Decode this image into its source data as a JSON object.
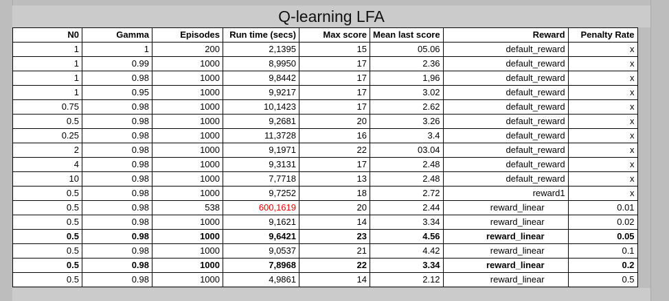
{
  "title": "Q-learning LFA",
  "colors": {
    "highlight": "#e00000"
  },
  "columns": [
    "N0",
    "Gamma",
    "Episodes",
    "Run time (secs)",
    "Max score",
    "Mean last score",
    "Reward",
    "Penalty Rate"
  ],
  "rows": [
    {
      "n0": "1",
      "gamma": "1",
      "episodes": "200",
      "runtime": "2,1395",
      "max": "15",
      "mean": "05.06",
      "reward": "default_reward",
      "penalty": "x",
      "bold": false,
      "red_runtime": false
    },
    {
      "n0": "1",
      "gamma": "0.99",
      "episodes": "1000",
      "runtime": "8,9950",
      "max": "17",
      "mean": "2.36",
      "reward": "default_reward",
      "penalty": "x",
      "bold": false,
      "red_runtime": false
    },
    {
      "n0": "1",
      "gamma": "0.98",
      "episodes": "1000",
      "runtime": "9,8442",
      "max": "17",
      "mean": "1,96",
      "reward": "default_reward",
      "penalty": "x",
      "bold": false,
      "red_runtime": false
    },
    {
      "n0": "1",
      "gamma": "0.95",
      "episodes": "1000",
      "runtime": "9,9217",
      "max": "17",
      "mean": "3.02",
      "reward": "default_reward",
      "penalty": "x",
      "bold": false,
      "red_runtime": false
    },
    {
      "n0": "0.75",
      "gamma": "0.98",
      "episodes": "1000",
      "runtime": "10,1423",
      "max": "17",
      "mean": "2.62",
      "reward": "default_reward",
      "penalty": "x",
      "bold": false,
      "red_runtime": false
    },
    {
      "n0": "0.5",
      "gamma": "0.98",
      "episodes": "1000",
      "runtime": "9,2681",
      "max": "20",
      "mean": "3.26",
      "reward": "default_reward",
      "penalty": "x",
      "bold": false,
      "red_runtime": false
    },
    {
      "n0": "0.25",
      "gamma": "0.98",
      "episodes": "1000",
      "runtime": "11,3728",
      "max": "16",
      "mean": "3.4",
      "reward": "default_reward",
      "penalty": "x",
      "bold": false,
      "red_runtime": false
    },
    {
      "n0": "2",
      "gamma": "0.98",
      "episodes": "1000",
      "runtime": "9,1971",
      "max": "22",
      "mean": "03.04",
      "reward": "default_reward",
      "penalty": "x",
      "bold": false,
      "red_runtime": false
    },
    {
      "n0": "4",
      "gamma": "0.98",
      "episodes": "1000",
      "runtime": "9,3131",
      "max": "17",
      "mean": "2.48",
      "reward": "default_reward",
      "penalty": "x",
      "bold": false,
      "red_runtime": false
    },
    {
      "n0": "10",
      "gamma": "0.98",
      "episodes": "1000",
      "runtime": "7,7718",
      "max": "13",
      "mean": "2.48",
      "reward": "default_reward",
      "penalty": "x",
      "bold": false,
      "red_runtime": false
    },
    {
      "n0": "0.5",
      "gamma": "0.98",
      "episodes": "1000",
      "runtime": "9,7252",
      "max": "18",
      "mean": "2.72",
      "reward": "reward1",
      "penalty": "x",
      "bold": false,
      "red_runtime": false
    },
    {
      "n0": "0.5",
      "gamma": "0.98",
      "episodes": "538",
      "runtime": "600,1619",
      "max": "20",
      "mean": "2.44",
      "reward": "reward_linear",
      "penalty": "0.01",
      "bold": false,
      "red_runtime": true
    },
    {
      "n0": "0.5",
      "gamma": "0.98",
      "episodes": "1000",
      "runtime": "9,1621",
      "max": "14",
      "mean": "3.34",
      "reward": "reward_linear",
      "penalty": "0.02",
      "bold": false,
      "red_runtime": false
    },
    {
      "n0": "0.5",
      "gamma": "0.98",
      "episodes": "1000",
      "runtime": "9,6421",
      "max": "23",
      "mean": "4.56",
      "reward": "reward_linear",
      "penalty": "0.05",
      "bold": true,
      "red_runtime": false
    },
    {
      "n0": "0.5",
      "gamma": "0.98",
      "episodes": "1000",
      "runtime": "9,0537",
      "max": "21",
      "mean": "4.42",
      "reward": "reward_linear",
      "penalty": "0.1",
      "bold": false,
      "red_runtime": false
    },
    {
      "n0": "0.5",
      "gamma": "0.98",
      "episodes": "1000",
      "runtime": "7,8968",
      "max": "22",
      "mean": "3.34",
      "reward": "reward_linear",
      "penalty": "0.2",
      "bold": true,
      "red_runtime": false
    },
    {
      "n0": "0.5",
      "gamma": "0.98",
      "episodes": "1000",
      "runtime": "4,9861",
      "max": "14",
      "mean": "2.12",
      "reward": "reward_linear",
      "penalty": "0.5",
      "bold": false,
      "red_runtime": false
    }
  ]
}
